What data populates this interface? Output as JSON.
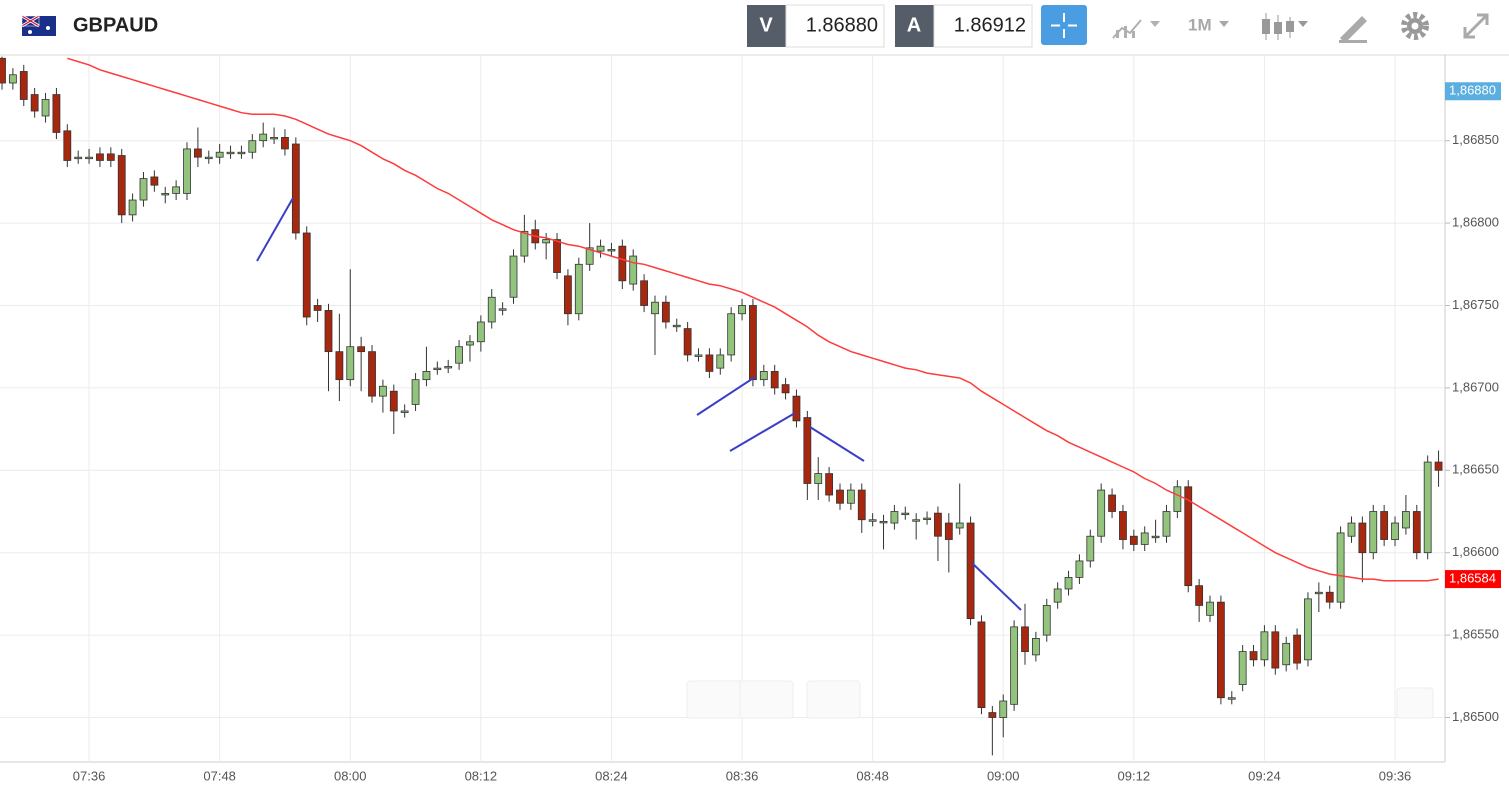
{
  "header": {
    "symbol": "GBPAUD",
    "bid_label": "V",
    "bid": "1.86880",
    "ask_label": "A",
    "ask": "1.86912",
    "timeframe": "1M"
  },
  "chart_data": {
    "type": "candlestick",
    "categories": [
      null,
      null,
      null,
      null,
      null,
      null,
      null,
      null,
      "07:36",
      null,
      null,
      null,
      null,
      null,
      null,
      null,
      null,
      null,
      null,
      null,
      "07:48",
      null,
      null,
      null,
      null,
      null,
      null,
      null,
      null,
      null,
      null,
      null,
      "08:00",
      null,
      null,
      null,
      null,
      null,
      null,
      null,
      null,
      null,
      null,
      null,
      "08:12",
      null,
      null,
      null,
      null,
      null,
      null,
      null,
      null,
      null,
      null,
      null,
      "08:24",
      null,
      null,
      null,
      null,
      null,
      null,
      null,
      null,
      null,
      null,
      null,
      "08:36",
      null,
      null,
      null,
      null,
      null,
      null,
      null,
      null,
      null,
      null,
      null,
      "08:48",
      null,
      null,
      null,
      null,
      null,
      null,
      null,
      null,
      null,
      null,
      null,
      "09:00",
      null,
      null,
      null,
      null,
      null,
      null,
      null,
      null,
      null,
      null,
      null,
      "09:12",
      null,
      null,
      null,
      null,
      null,
      null,
      null,
      null,
      null,
      null,
      null,
      "09:24",
      null,
      null,
      null,
      null,
      null,
      null,
      null,
      null,
      null,
      null,
      null,
      "09:36",
      null,
      null,
      null,
      null
    ],
    "open": [
      1.869,
      1.86885,
      1.86892,
      1.86878,
      1.86865,
      1.86878,
      1.86856,
      1.8684,
      1.8684,
      1.86842,
      1.86842,
      1.86841,
      1.86805,
      1.86814,
      1.86828,
      1.86818,
      1.86818,
      1.86818,
      1.86845,
      1.8684,
      1.8684,
      1.86843,
      1.86843,
      1.86843,
      1.8685,
      1.86852,
      1.86852,
      1.86848,
      1.86794,
      1.8675,
      1.86747,
      1.86722,
      1.86705,
      1.86725,
      1.86722,
      1.86695,
      1.86698,
      1.86686,
      1.8669,
      1.86705,
      1.86712,
      1.86713,
      1.86715,
      1.86726,
      1.86728,
      1.8674,
      1.86748,
      1.86755,
      1.8678,
      1.86796,
      1.86788,
      1.8679,
      1.86768,
      1.86745,
      1.86775,
      1.86783,
      1.86784,
      1.86786,
      1.86763,
      1.86765,
      1.86745,
      1.86752,
      1.86738,
      1.86736,
      1.8672,
      1.8672,
      1.86712,
      1.8672,
      1.86745,
      1.8675,
      1.86705,
      1.8671,
      1.86702,
      1.86695,
      1.86682,
      1.86642,
      1.86648,
      1.86638,
      1.8663,
      1.86638,
      1.8662,
      1.86619,
      1.86618,
      1.86624,
      1.8662,
      1.86621,
      1.86624,
      1.86618,
      1.86615,
      1.86618,
      1.86558,
      1.86503,
      1.865,
      1.86508,
      1.86555,
      1.86538,
      1.8655,
      1.8657,
      1.86578,
      1.86585,
      1.86595,
      1.8661,
      1.86635,
      1.86625,
      1.8661,
      1.86605,
      1.8661,
      1.8661,
      1.86625,
      1.8664,
      1.8658,
      1.86562,
      1.8657,
      1.86512,
      1.8652,
      1.8654,
      1.86535,
      1.86552,
      1.86532,
      1.8655,
      1.86535,
      1.86576,
      1.86576,
      1.8657,
      1.8661,
      1.86618,
      1.866,
      1.86625,
      1.86608,
      1.86615,
      1.86625,
      1.866,
      1.86655
    ],
    "high": [
      1.86901,
      1.86894,
      1.86896,
      1.86882,
      1.86879,
      1.86882,
      1.8686,
      1.86844,
      1.86845,
      1.86846,
      1.86846,
      1.86845,
      1.86818,
      1.86831,
      1.86832,
      1.86822,
      1.86826,
      1.86849,
      1.86858,
      1.86844,
      1.86848,
      1.86847,
      1.86847,
      1.86854,
      1.86861,
      1.86858,
      1.86857,
      1.86852,
      1.86798,
      1.86754,
      1.86751,
      1.86745,
      1.86772,
      1.86731,
      1.86726,
      1.86705,
      1.86702,
      1.8669,
      1.86709,
      1.86725,
      1.86716,
      1.86717,
      1.86729,
      1.86732,
      1.86744,
      1.8676,
      1.86752,
      1.86784,
      1.86805,
      1.86802,
      1.86794,
      1.86794,
      1.86772,
      1.86779,
      1.868,
      1.8679,
      1.86788,
      1.8679,
      1.86784,
      1.86769,
      1.86756,
      1.86756,
      1.86742,
      1.8674,
      1.86724,
      1.86724,
      1.86724,
      1.86749,
      1.86754,
      1.86754,
      1.86714,
      1.86714,
      1.86706,
      1.86699,
      1.86686,
      1.86658,
      1.86652,
      1.86642,
      1.86642,
      1.86642,
      1.86624,
      1.86623,
      1.86629,
      1.86628,
      1.86624,
      1.86625,
      1.86628,
      1.86624,
      1.86642,
      1.86622,
      1.86562,
      1.86507,
      1.86514,
      1.86559,
      1.86569,
      1.86552,
      1.86572,
      1.86582,
      1.86589,
      1.86599,
      1.86614,
      1.86642,
      1.86639,
      1.86629,
      1.86614,
      1.86616,
      1.8662,
      1.86629,
      1.86644,
      1.86644,
      1.86584,
      1.86574,
      1.86574,
      1.86516,
      1.86544,
      1.86544,
      1.86556,
      1.86556,
      1.86549,
      1.86554,
      1.86576,
      1.86582,
      1.8658,
      1.86616,
      1.86622,
      1.86622,
      1.86629,
      1.86629,
      1.86622,
      1.86635,
      1.86629,
      1.86659,
      1.86662
    ],
    "low": [
      1.86881,
      1.86881,
      1.86871,
      1.86864,
      1.86861,
      1.86851,
      1.86834,
      1.86836,
      1.86836,
      1.86834,
      1.86834,
      1.868,
      1.86801,
      1.8681,
      1.86819,
      1.86812,
      1.86814,
      1.86814,
      1.86834,
      1.86836,
      1.86836,
      1.86839,
      1.86839,
      1.86839,
      1.86846,
      1.86848,
      1.86841,
      1.8679,
      1.86738,
      1.8674,
      1.86698,
      1.86692,
      1.86701,
      1.86698,
      1.86691,
      1.86685,
      1.86672,
      1.86682,
      1.86686,
      1.86701,
      1.86708,
      1.86709,
      1.86711,
      1.86716,
      1.86722,
      1.86736,
      1.86744,
      1.86751,
      1.86776,
      1.86784,
      1.86778,
      1.86766,
      1.86738,
      1.86741,
      1.86771,
      1.86779,
      1.8678,
      1.8676,
      1.86759,
      1.86746,
      1.8672,
      1.86736,
      1.86734,
      1.86716,
      1.86716,
      1.86706,
      1.86708,
      1.86716,
      1.86741,
      1.86701,
      1.86701,
      1.86696,
      1.86693,
      1.86676,
      1.86632,
      1.86632,
      1.86631,
      1.86626,
      1.86626,
      1.86612,
      1.86616,
      1.86602,
      1.86614,
      1.8662,
      1.86608,
      1.86617,
      1.86595,
      1.86588,
      1.86611,
      1.86556,
      1.86502,
      1.86477,
      1.86488,
      1.86504,
      1.86532,
      1.86534,
      1.86546,
      1.86566,
      1.86574,
      1.86581,
      1.86591,
      1.86606,
      1.86621,
      1.86602,
      1.86601,
      1.86601,
      1.86606,
      1.86606,
      1.86621,
      1.86576,
      1.86558,
      1.86558,
      1.86508,
      1.86508,
      1.86516,
      1.86531,
      1.86531,
      1.86526,
      1.86528,
      1.86529,
      1.86531,
      1.86564,
      1.86566,
      1.86566,
      1.86606,
      1.86582,
      1.86596,
      1.86604,
      1.86604,
      1.86611,
      1.86596,
      1.86596,
      1.8664
    ],
    "close": [
      1.86885,
      1.8689,
      1.86875,
      1.86868,
      1.86875,
      1.86855,
      1.86838,
      1.8684,
      1.8684,
      1.86838,
      1.86838,
      1.86805,
      1.86814,
      1.86827,
      1.86823,
      1.86818,
      1.86822,
      1.86845,
      1.8684,
      1.8684,
      1.86843,
      1.86843,
      1.86843,
      1.8685,
      1.86854,
      1.86852,
      1.86845,
      1.86794,
      1.86743,
      1.86747,
      1.86722,
      1.86705,
      1.86725,
      1.86722,
      1.86695,
      1.86701,
      1.86686,
      1.86686,
      1.86705,
      1.8671,
      1.86712,
      1.86713,
      1.86725,
      1.86728,
      1.8674,
      1.86755,
      1.86748,
      1.8678,
      1.86795,
      1.86788,
      1.8679,
      1.8677,
      1.86745,
      1.86775,
      1.86785,
      1.86786,
      1.86784,
      1.86765,
      1.8678,
      1.8675,
      1.86752,
      1.8674,
      1.86738,
      1.8672,
      1.8672,
      1.8671,
      1.8672,
      1.86745,
      1.8675,
      1.86705,
      1.8671,
      1.867,
      1.86697,
      1.8668,
      1.86642,
      1.86648,
      1.86635,
      1.8663,
      1.86638,
      1.8662,
      1.8662,
      1.86619,
      1.86625,
      1.86624,
      1.8662,
      1.86621,
      1.8661,
      1.86608,
      1.86618,
      1.8656,
      1.86506,
      1.865,
      1.8651,
      1.86555,
      1.8654,
      1.86548,
      1.86568,
      1.86578,
      1.86585,
      1.86595,
      1.8661,
      1.86638,
      1.86625,
      1.86608,
      1.86605,
      1.86612,
      1.8661,
      1.86625,
      1.8664,
      1.8658,
      1.86568,
      1.8657,
      1.86512,
      1.86512,
      1.8654,
      1.86535,
      1.86552,
      1.8653,
      1.86545,
      1.86533,
      1.86572,
      1.86576,
      1.8657,
      1.86612,
      1.86618,
      1.866,
      1.86625,
      1.86608,
      1.86618,
      1.86625,
      1.866,
      1.86655,
      1.8665
    ],
    "up_color": "#93c47d",
    "down_color": "#a8270f",
    "moving_average": {
      "color": "#ff3b3b",
      "values": [
        null,
        null,
        null,
        null,
        null,
        null,
        1.869,
        1.86898,
        1.86896,
        1.86893,
        1.86891,
        1.86889,
        1.86887,
        1.86885,
        1.86883,
        1.86881,
        1.86879,
        1.86877,
        1.86875,
        1.86873,
        1.86871,
        1.86869,
        1.86867,
        1.86866,
        1.86866,
        1.86866,
        1.86865,
        1.86863,
        1.8686,
        1.86857,
        1.86854,
        1.86852,
        1.8685,
        1.86847,
        1.86843,
        1.86839,
        1.86836,
        1.86832,
        1.86829,
        1.86825,
        1.86821,
        1.86818,
        1.86814,
        1.8681,
        1.86806,
        1.86802,
        1.86799,
        1.86796,
        1.86794,
        1.86792,
        1.86791,
        1.86789,
        1.86787,
        1.86786,
        1.86784,
        1.86782,
        1.8678,
        1.86778,
        1.86776,
        1.86775,
        1.86773,
        1.86771,
        1.86769,
        1.86767,
        1.86765,
        1.86763,
        1.86762,
        1.8676,
        1.86758,
        1.86755,
        1.86752,
        1.86749,
        1.86745,
        1.86741,
        1.86737,
        1.86732,
        1.86728,
        1.86725,
        1.86722,
        1.8672,
        1.86718,
        1.86716,
        1.86714,
        1.86712,
        1.86711,
        1.86709,
        1.86708,
        1.86707,
        1.86706,
        1.86703,
        1.86698,
        1.86694,
        1.8669,
        1.86686,
        1.86682,
        1.86678,
        1.86674,
        1.86671,
        1.86667,
        1.86664,
        1.86661,
        1.86658,
        1.86655,
        1.86652,
        1.86649,
        1.86645,
        1.86642,
        1.86638,
        1.86635,
        1.86632,
        1.86628,
        1.86624,
        1.8662,
        1.86616,
        1.86612,
        1.86608,
        1.86604,
        1.866,
        1.86597,
        1.86594,
        1.86591,
        1.86589,
        1.86587,
        1.86586,
        1.86585,
        1.86584,
        1.86584,
        1.86583,
        1.86583,
        1.86583,
        1.86583,
        1.86583,
        1.86584
      ]
    },
    "ylim": [
      1.86473,
      1.86902
    ],
    "yticks": [
      {
        "value": 1.865,
        "label": "1,86500"
      },
      {
        "value": 1.8655,
        "label": "1,86550"
      },
      {
        "value": 1.866,
        "label": "1,86600"
      },
      {
        "value": 1.8665,
        "label": "1,86650"
      },
      {
        "value": 1.867,
        "label": "1,86700"
      },
      {
        "value": 1.8675,
        "label": "1,86750"
      },
      {
        "value": 1.868,
        "label": "1,86800"
      },
      {
        "value": 1.8685,
        "label": "1,86850"
      }
    ],
    "grid": true,
    "markers": [
      {
        "value": 1.8688,
        "label": "1,86880",
        "color": "#5aaee0"
      },
      {
        "value": 1.86584,
        "label": "1,86584",
        "color": "#ff0000"
      }
    ]
  }
}
